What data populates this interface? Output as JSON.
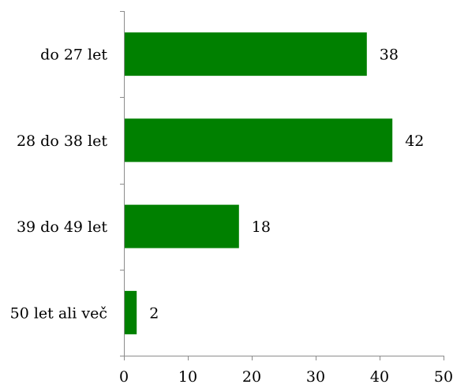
{
  "chart_data": {
    "type": "bar",
    "orientation": "horizontal",
    "categories": [
      "do 27 let",
      "28 do 38 let",
      "39 do 49 let",
      "50 let ali več"
    ],
    "values": [
      38,
      42,
      18,
      2
    ],
    "data_labels": [
      "38",
      "42",
      "18",
      "2"
    ],
    "xlim": [
      0,
      50
    ],
    "x_ticks": [
      0,
      10,
      20,
      30,
      40,
      50
    ],
    "x_tick_labels": [
      "0",
      "10",
      "20",
      "30",
      "40",
      "50"
    ],
    "grid": false,
    "legend": "none",
    "bar_color": "#008000"
  }
}
